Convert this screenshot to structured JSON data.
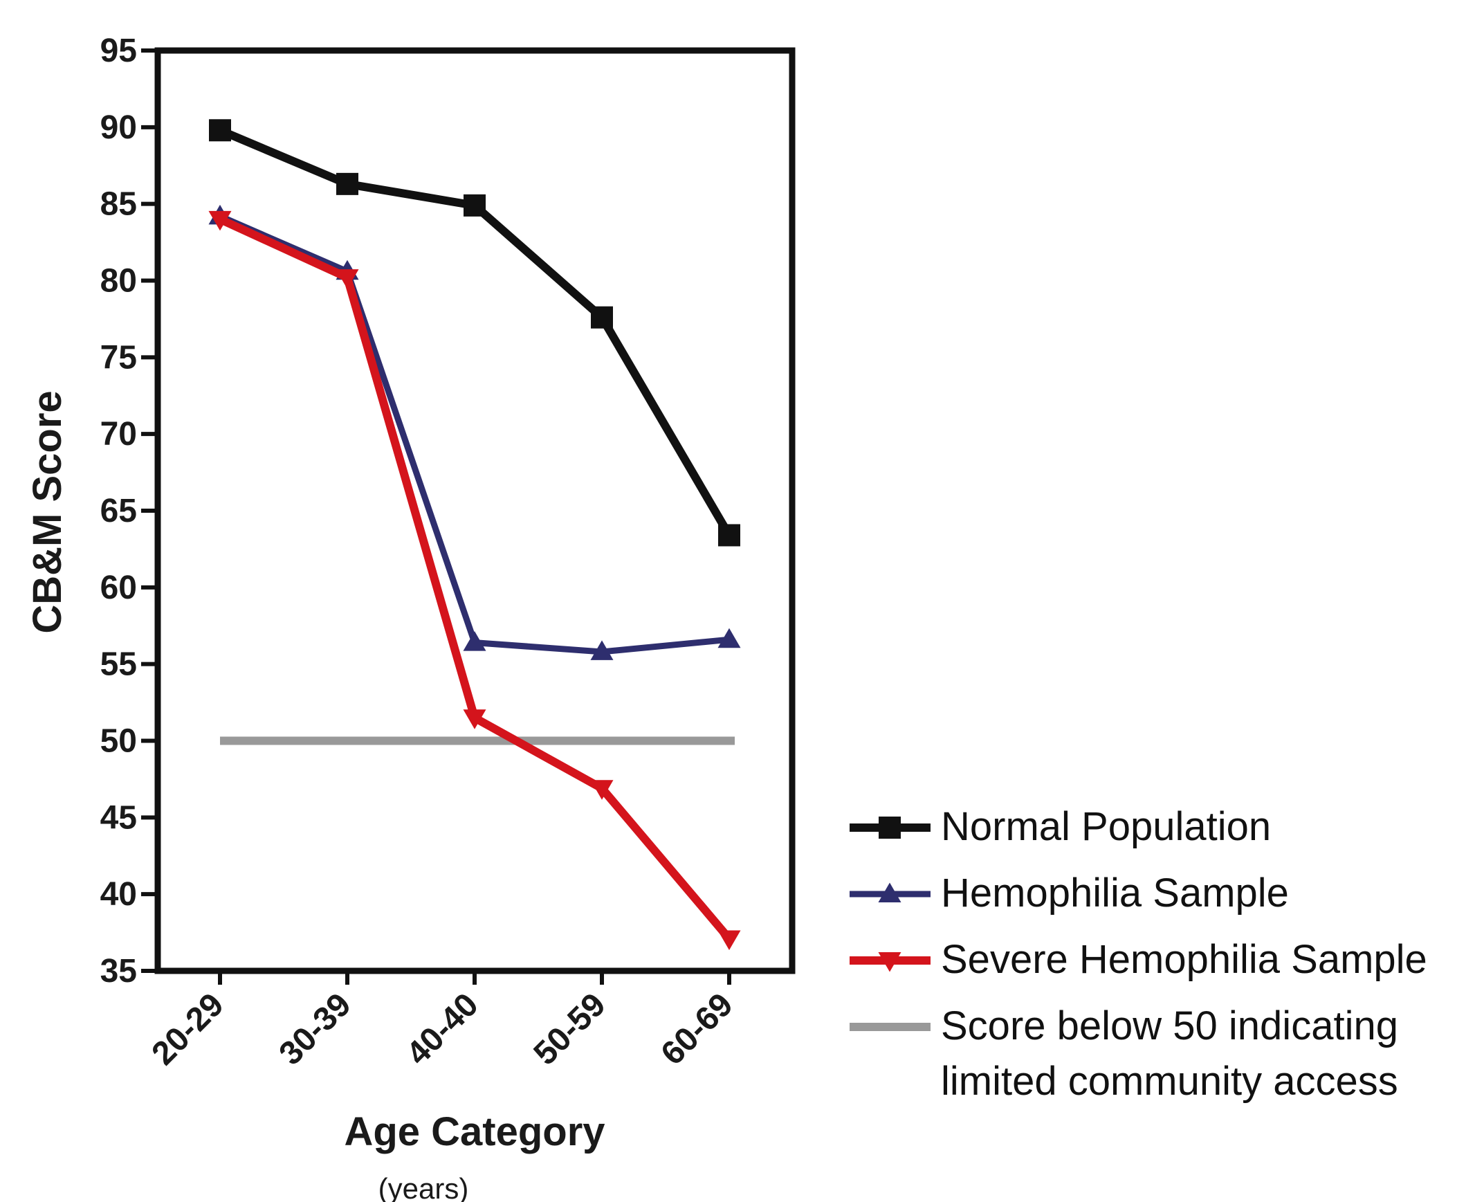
{
  "chart_data": {
    "type": "line",
    "title": "",
    "xlabel": "Age Category",
    "xlabel_sub": "(years)",
    "ylabel": "CB&M Score",
    "categories": [
      "20-29",
      "30-39",
      "40-40",
      "50-59",
      "60-69"
    ],
    "ylim": [
      35,
      95
    ],
    "yticks": [
      35,
      40,
      45,
      50,
      55,
      60,
      65,
      70,
      75,
      80,
      85,
      90,
      95
    ],
    "grid": false,
    "legend_position": "bottom-right",
    "series": [
      {
        "name": "Normal Population",
        "values": [
          89.8,
          86.3,
          84.9,
          77.6,
          63.4
        ],
        "color": "#111111",
        "marker": "square"
      },
      {
        "name": "Hemophilia Sample",
        "values": [
          84.2,
          80.6,
          56.4,
          55.8,
          56.6
        ],
        "color": "#2e2e6e",
        "marker": "triangle-up"
      },
      {
        "name": "Severe Hemophilia Sample",
        "values": [
          84.0,
          80.2,
          51.5,
          46.9,
          37.1
        ],
        "color": "#d4141c",
        "marker": "triangle-down"
      }
    ],
    "reference_line": {
      "value": 50,
      "color": "#999999",
      "label_lines": [
        "Score below 50 indicating",
        "limited community access"
      ]
    }
  }
}
